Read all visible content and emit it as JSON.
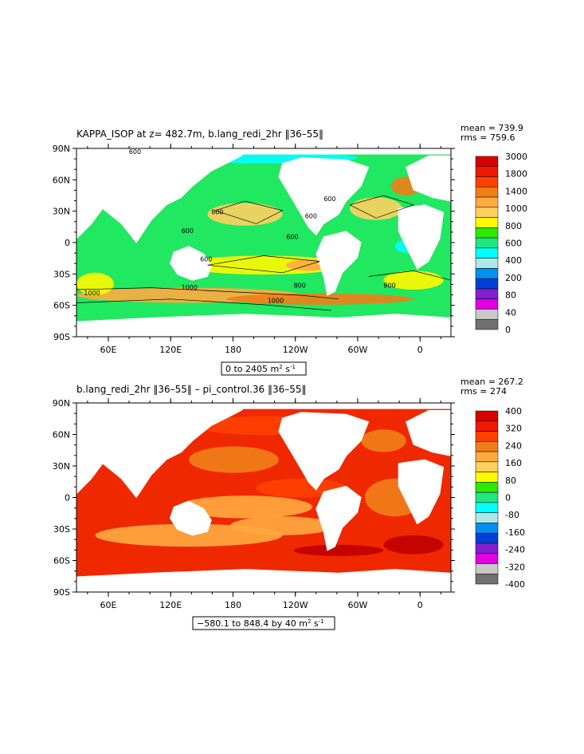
{
  "panels": [
    {
      "title": "KAPPA_ISOP at z= 482.7m, b.lang_redi_2hr ‖36–55‖",
      "stats": {
        "mean": "mean = 739.9",
        "rms": "rms = 759.6"
      },
      "range_label": {
        "text": "0 to 2405 m",
        "sup": "2",
        "tail": " s",
        "tail_sup": "-1"
      },
      "legend": [
        "3000",
        "1800",
        "1400",
        "1000",
        "800",
        "600",
        "400",
        "200",
        "80",
        "40",
        "0"
      ],
      "legend_colors": [
        "#d80000",
        "#f01800",
        "#ff4000",
        "#f07e18",
        "#ffaa40",
        "#ffd060",
        "#fffa00",
        "#30e800",
        "#20e880",
        "#00ffff",
        "#b0e6e6",
        "#0090f0",
        "#0040d8",
        "#8020d0",
        "#e000e0",
        "#c8c8c8",
        "#707070"
      ],
      "contour_labels": [
        "600",
        "800",
        "600",
        "600",
        "600",
        "600",
        "1000",
        "1000",
        "800",
        "1000",
        "800",
        "600"
      ]
    },
    {
      "title": "b.lang_redi_2hr ‖36–55‖ – pi_control.36 ‖36–55‖",
      "stats": {
        "mean": "mean = 267.2",
        "rms": "rms = 274"
      },
      "range_label": {
        "text": "−580.1 to 848.4 by 40 m",
        "sup": "2",
        "tail": " s",
        "tail_sup": "-1"
      },
      "legend": [
        "400",
        "320",
        "240",
        "160",
        "80",
        "0",
        "-80",
        "-160",
        "-240",
        "-320",
        "-400"
      ],
      "legend_colors": [
        "#d80000",
        "#f01800",
        "#ff4000",
        "#f07e18",
        "#ffaa40",
        "#ffd060",
        "#fffa00",
        "#30e800",
        "#20e880",
        "#00ffff",
        "#b0e6e6",
        "#0090f0",
        "#0040d8",
        "#8020d0",
        "#e000e0",
        "#c8c8c8",
        "#707070"
      ]
    }
  ],
  "axes": {
    "lat_labels": [
      "90N",
      "60N",
      "30N",
      "0",
      "30S",
      "60S",
      "90S"
    ],
    "lon_labels": [
      "60E",
      "120E",
      "180",
      "120W",
      "60W",
      "0"
    ]
  },
  "colors": {
    "ocean_top": "#20e860",
    "ocean_bottom": "#f02800",
    "land": "#ffffff"
  }
}
